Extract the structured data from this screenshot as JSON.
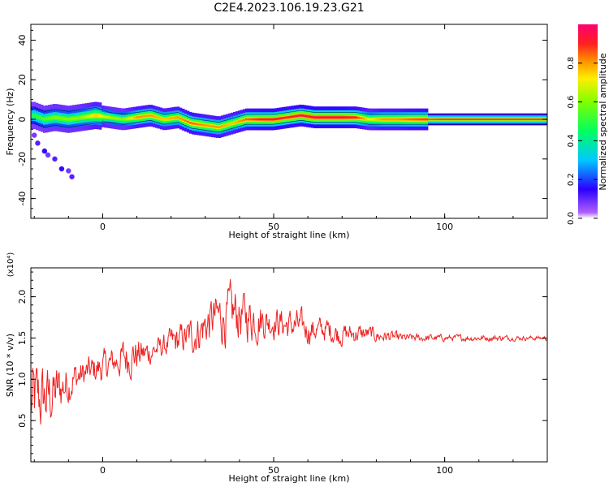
{
  "title": "C2E4.2023.106.19.23.G21",
  "chart_data": [
    {
      "type": "heatmap",
      "xlabel": "Height of straight line (km)",
      "ylabel": "Frequency (Hz)",
      "xlim": [
        -21,
        130
      ],
      "ylim": [
        -50,
        48
      ],
      "xticks": [
        0,
        50,
        100
      ],
      "yticks": [
        40,
        20,
        0,
        -20,
        -40
      ],
      "colorbar": {
        "label": "Normalized spectral amplitude",
        "range": [
          0,
          1
        ],
        "ticks": [
          "0.0",
          "0.2",
          "0.4",
          "0.6",
          "0.8"
        ],
        "colormap": "rainbow"
      },
      "ridge": {
        "x": [
          -20,
          -17,
          -14,
          -10,
          -6,
          -2,
          2,
          6,
          10,
          14,
          18,
          22,
          26,
          30,
          34,
          38,
          42,
          46,
          50,
          54,
          58,
          62,
          66,
          70,
          74,
          78,
          82,
          86,
          90,
          100,
          110,
          120,
          130
        ],
        "frequency": [
          2,
          0,
          1,
          0,
          1,
          2,
          1,
          0,
          1,
          2,
          0,
          1,
          -2,
          -3,
          -4,
          -2,
          0,
          0,
          0,
          1,
          2,
          1,
          1,
          1,
          1,
          0,
          0,
          0,
          0,
          0,
          0,
          0,
          0
        ],
        "amplitude": [
          0.5,
          0.55,
          0.6,
          0.6,
          0.62,
          0.75,
          0.65,
          0.6,
          0.8,
          0.8,
          0.75,
          0.8,
          0.85,
          0.8,
          0.8,
          0.75,
          0.85,
          0.9,
          0.92,
          0.9,
          0.92,
          0.95,
          0.95,
          0.95,
          0.9,
          0.7,
          0.8,
          0.8,
          0.85,
          0.9,
          0.9,
          0.9,
          0.9
        ]
      },
      "scatter": {
        "x": [
          -20,
          -19,
          -17,
          -16,
          -14,
          -12,
          -10,
          -9
        ],
        "frequency": [
          -8,
          -12,
          -16,
          -18,
          -20,
          -25,
          -26,
          -29
        ]
      }
    },
    {
      "type": "line",
      "xlabel": "Height of straight line (km)",
      "ylabel": "SNR (10 * v/v)",
      "multiplier": "(x10⁴)",
      "xlim": [
        -21,
        130
      ],
      "ylim": [
        0,
        2.35
      ],
      "xticks": [
        0,
        50,
        100
      ],
      "yticks": [
        "0.5",
        "1.0",
        "1.5",
        "2.0"
      ],
      "color": "#ee2222",
      "series": [
        {
          "x": [
            -21,
            -18,
            -15,
            -12,
            -9,
            -6,
            -3,
            0,
            3,
            6,
            9,
            12,
            15,
            18,
            21,
            24,
            27,
            30,
            33,
            36,
            39,
            42,
            45,
            48,
            51,
            54,
            57,
            60,
            63,
            66,
            69,
            72,
            75,
            78,
            81,
            84,
            87,
            90,
            95,
            100,
            105,
            110,
            115,
            120,
            125,
            130
          ],
          "y": [
            0.7,
            0.75,
            0.8,
            0.9,
            1.0,
            1.05,
            1.1,
            1.15,
            1.2,
            1.25,
            1.3,
            1.3,
            1.35,
            1.4,
            1.45,
            1.5,
            1.55,
            1.65,
            1.75,
            1.75,
            1.8,
            1.75,
            1.75,
            1.7,
            1.7,
            1.65,
            1.65,
            1.6,
            1.6,
            1.6,
            1.55,
            1.55,
            1.55,
            1.55,
            1.52,
            1.52,
            1.5,
            1.5,
            1.5,
            1.5,
            1.5,
            1.5,
            1.5,
            1.5,
            1.5,
            1.5
          ],
          "amp": [
            0.55,
            0.45,
            0.4,
            0.3,
            0.25,
            0.2,
            0.2,
            0.2,
            0.18,
            0.25,
            0.25,
            0.2,
            0.15,
            0.15,
            0.2,
            0.2,
            0.25,
            0.28,
            0.3,
            0.35,
            0.35,
            0.3,
            0.3,
            0.2,
            0.2,
            0.2,
            0.2,
            0.18,
            0.15,
            0.15,
            0.15,
            0.12,
            0.12,
            0.1,
            0.08,
            0.07,
            0.06,
            0.05,
            0.05,
            0.04,
            0.04,
            0.04,
            0.04,
            0.03,
            0.03,
            0.03
          ]
        }
      ]
    }
  ]
}
